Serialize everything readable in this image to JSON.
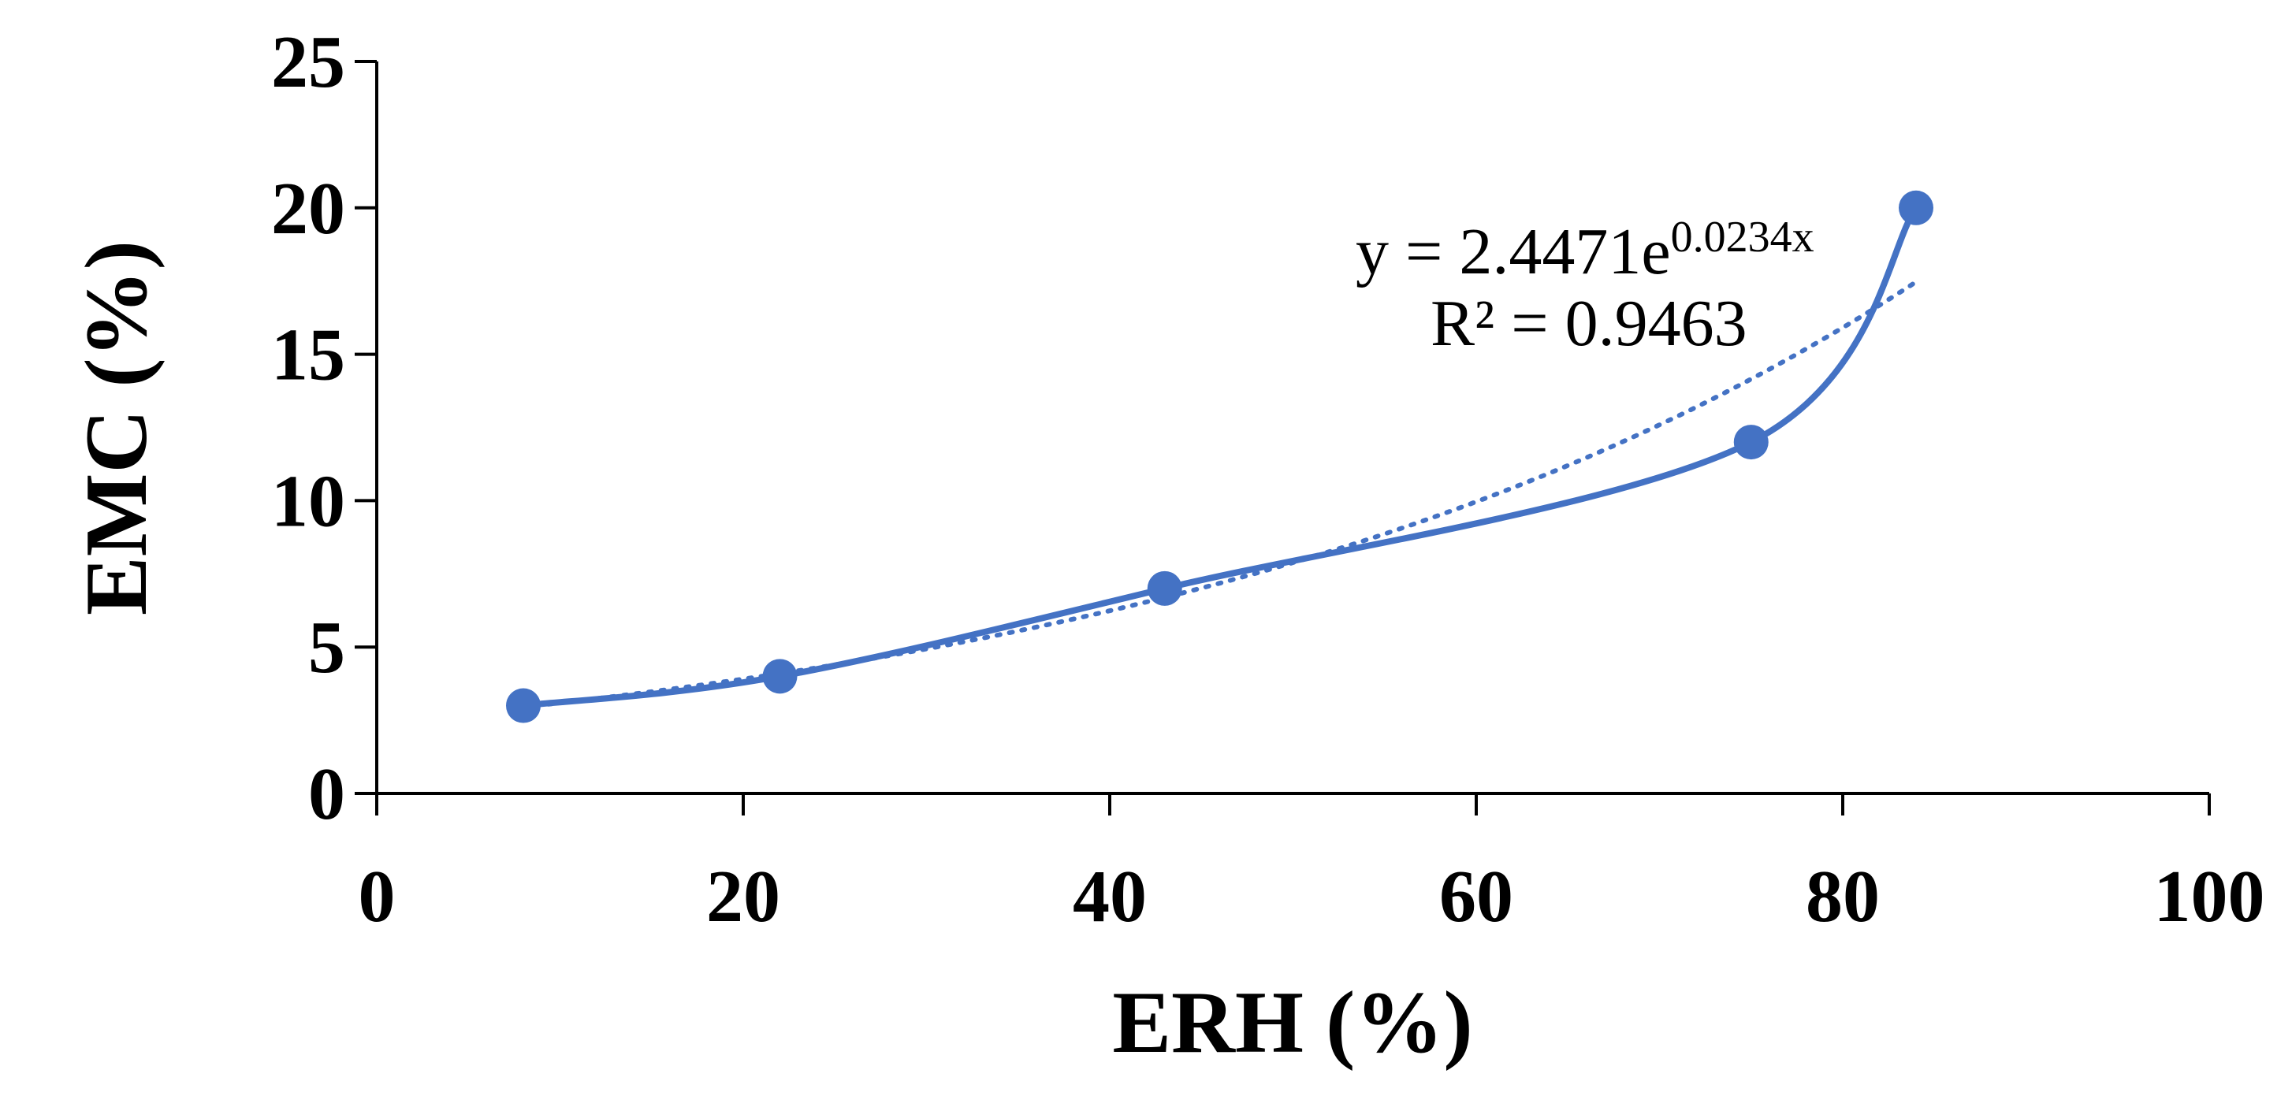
{
  "chart_data": {
    "type": "scatter",
    "xlabel": "ERH (%)",
    "ylabel": "EMC (%)",
    "xlim": [
      0,
      100
    ],
    "ylim": [
      0,
      25
    ],
    "xticks": [
      "0",
      "20",
      "40",
      "60",
      "80",
      "100"
    ],
    "yticks": [
      "0",
      "5",
      "10",
      "15",
      "20",
      "25"
    ],
    "grid": false,
    "colors": {
      "series": "#4472C4",
      "axis": "#000000"
    },
    "series": [
      {
        "x": [
          8,
          22,
          43,
          75,
          84
        ],
        "y": [
          3,
          4,
          7,
          12,
          20
        ]
      }
    ],
    "trendline": {
      "type": "exponential",
      "a": 2.4471,
      "b": 0.0234,
      "x_range": [
        8,
        84
      ]
    },
    "annotation": {
      "eq_prefix": "y = 2.4471e",
      "eq_exponent": "0.0234x",
      "r2": "R² = 0.9463"
    }
  }
}
